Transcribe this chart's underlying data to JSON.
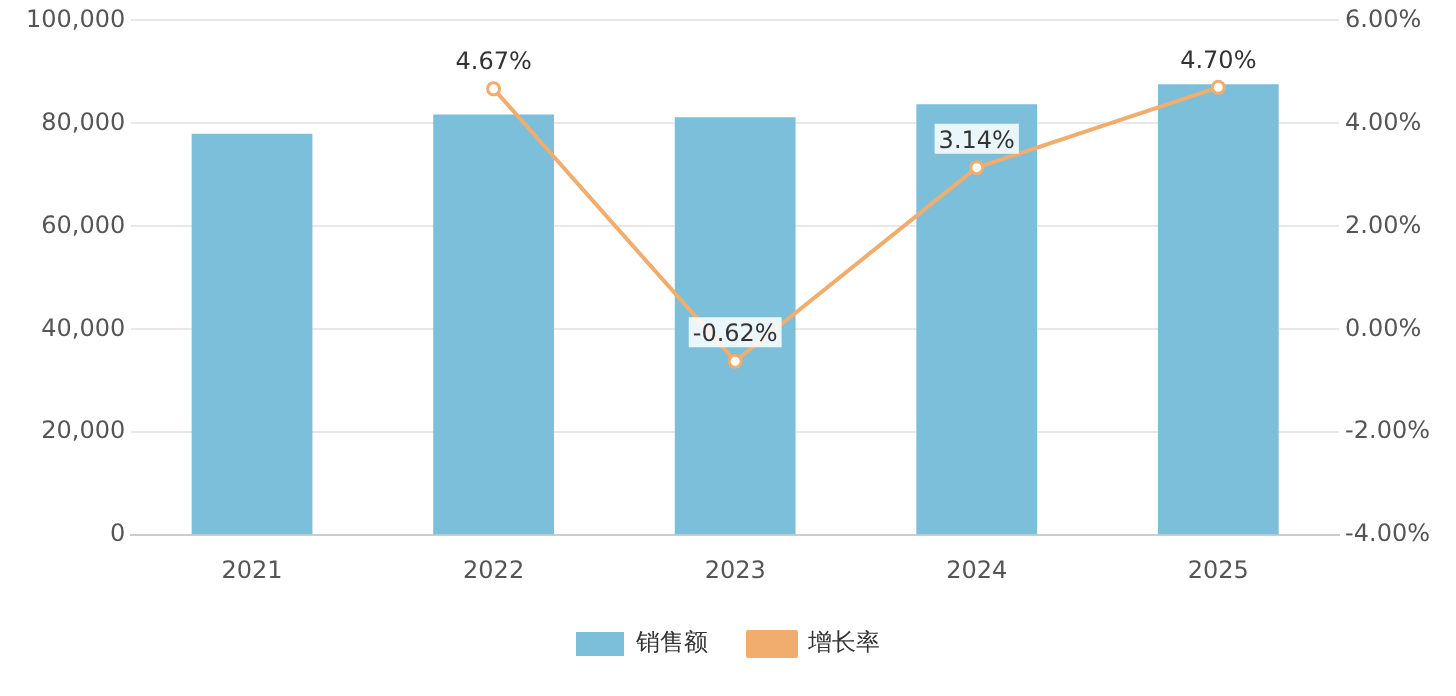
{
  "chart_data": {
    "type": "bar",
    "categories": [
      "2021",
      "2022",
      "2023",
      "2024",
      "2025"
    ],
    "series": [
      {
        "name": "销售额",
        "color": "#7bbfdb",
        "values": [
          78000,
          81700,
          81200,
          83700,
          87600
        ]
      },
      {
        "name": "增长率",
        "type": "line",
        "axis": "y2",
        "color": "#f0ad6e",
        "marker": "circle",
        "values": [
          null,
          4.67,
          -0.62,
          3.14,
          4.7
        ],
        "value_labels": [
          null,
          "4.67%",
          "-0.62%",
          "3.14%",
          "4.70%"
        ]
      }
    ],
    "ylim": [
      0,
      100000
    ],
    "yticks": [
      {
        "value": 0,
        "label": "0"
      },
      {
        "value": 20000,
        "label": "20,000"
      },
      {
        "value": 40000,
        "label": "40,000"
      },
      {
        "value": 60000,
        "label": "60,000"
      },
      {
        "value": 80000,
        "label": "80,000"
      },
      {
        "value": 100000,
        "label": "100,000"
      }
    ],
    "y2lim": [
      -4,
      6
    ],
    "y2ticks": [
      {
        "value": -4,
        "label": "-4.00%"
      },
      {
        "value": -2,
        "label": "-2.00%"
      },
      {
        "value": 0,
        "label": "0.00%"
      },
      {
        "value": 2,
        "label": "2.00%"
      },
      {
        "value": 4,
        "label": "4.00%"
      },
      {
        "value": 6,
        "label": "6.00%"
      }
    ],
    "grid": "y",
    "legend": "bottom"
  }
}
